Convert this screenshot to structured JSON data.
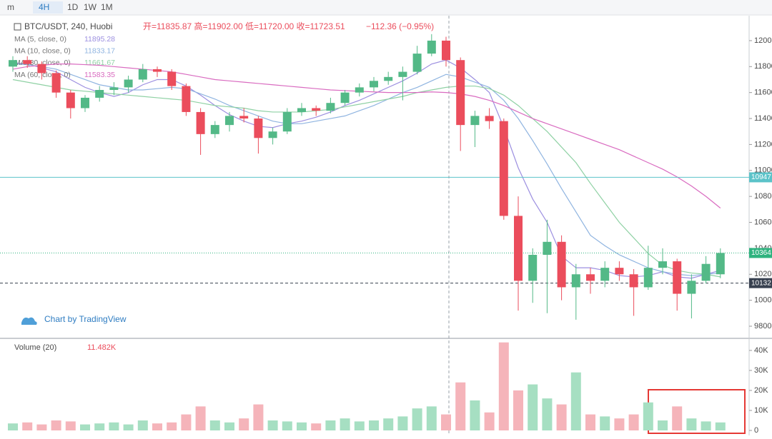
{
  "toolbar": {
    "buttons": [
      "m",
      "4H",
      "1D",
      "1W",
      "1M"
    ]
  },
  "chart_data": {
    "type": "candlestick",
    "title": "BTC/USDT, 240, Huobi",
    "ohlc_legend": "开=11835.87 高=11902.00 低=11720.00 收=11723.51",
    "change_legend": "−112.36 (−0.95%)",
    "watermark": "Chart by TradingView",
    "up_color": "#53b987",
    "down_color": "#eb4d5c",
    "ylim": [
      9712,
      12192
    ],
    "yticks": [
      9800,
      10000,
      10200,
      10400,
      10600,
      10800,
      11000,
      11200,
      11400,
      11600,
      11800,
      12000
    ],
    "open": [
      11800,
      11850,
      11820,
      11750,
      11600,
      11480,
      11560,
      11620,
      11640,
      11700,
      11780,
      11760,
      11650,
      11450,
      11280,
      11350,
      11420,
      11400,
      11250,
      11300,
      11450,
      11480,
      11460,
      11520,
      11600,
      11640,
      11690,
      11720,
      11760,
      11900,
      12000,
      11850,
      11350,
      11420,
      11380,
      10650,
      10150,
      10350,
      10450,
      10100,
      10200,
      10150,
      10250,
      10200,
      10100,
      10250,
      10300,
      10050,
      10150,
      10200
    ],
    "high": [
      11880,
      11880,
      11840,
      11770,
      11620,
      11580,
      11650,
      11680,
      11730,
      11820,
      11800,
      11780,
      11670,
      11480,
      11380,
      11450,
      11480,
      11420,
      11330,
      11480,
      11520,
      11500,
      11560,
      11620,
      11670,
      11720,
      11760,
      11800,
      11960,
      12050,
      12030,
      11870,
      11460,
      11480,
      11400,
      10800,
      10400,
      10620,
      10500,
      10280,
      10250,
      10300,
      10300,
      10240,
      10420,
      10400,
      10320,
      10200,
      10340,
      10400
    ],
    "low": [
      11760,
      11790,
      11700,
      11560,
      11400,
      11450,
      11530,
      11580,
      11600,
      11680,
      11720,
      11620,
      11420,
      11120,
      11250,
      11300,
      11370,
      11130,
      11200,
      11280,
      11420,
      11420,
      11440,
      11500,
      11570,
      11610,
      11660,
      11540,
      11740,
      11880,
      11800,
      11150,
      11180,
      11320,
      10620,
      9920,
      9980,
      9900,
      10000,
      9850,
      10050,
      10100,
      10150,
      9880,
      10080,
      10200,
      9920,
      9860,
      10130,
      10170
    ],
    "close": [
      11850,
      11820,
      11750,
      11600,
      11480,
      11560,
      11620,
      11640,
      11700,
      11780,
      11760,
      11650,
      11450,
      11280,
      11350,
      11420,
      11400,
      11250,
      11300,
      11450,
      11480,
      11460,
      11520,
      11600,
      11640,
      11690,
      11720,
      11760,
      11900,
      12000,
      11850,
      11350,
      11420,
      11380,
      10650,
      10150,
      10350,
      10450,
      10100,
      10200,
      10150,
      10250,
      10200,
      10100,
      10250,
      10300,
      10050,
      10150,
      10280,
      10364
    ],
    "moving_averages": [
      {
        "name": "MA (5, close, 0)",
        "value_label": "11895.28",
        "color": "#9c8fe0",
        "values": [
          11830,
          11820,
          11790,
          11760,
          11700,
          11640,
          11600,
          11570,
          11600,
          11660,
          11700,
          11700,
          11650,
          11580,
          11500,
          11430,
          11380,
          11340,
          11330,
          11360,
          11380,
          11410,
          11450,
          11500,
          11540,
          11590,
          11640,
          11690,
          11750,
          11820,
          11850,
          11790,
          11700,
          11600,
          11330,
          11020,
          10780,
          10600,
          10340,
          10250,
          10250,
          10230,
          10190,
          10180,
          10190,
          10220,
          10180,
          10170,
          10200,
          10230
        ]
      },
      {
        "name": "MA (10, close, 0)",
        "value_label": "11833.17",
        "color": "#8fb4e0",
        "values": [
          11820,
          11815,
          11800,
          11780,
          11740,
          11700,
          11660,
          11640,
          11620,
          11620,
          11630,
          11640,
          11630,
          11590,
          11550,
          11500,
          11460,
          11420,
          11380,
          11360,
          11360,
          11380,
          11400,
          11420,
          11460,
          11500,
          11550,
          11600,
          11640,
          11690,
          11740,
          11720,
          11680,
          11640,
          11540,
          11400,
          11230,
          11050,
          10860,
          10680,
          10500,
          10420,
          10350,
          10300,
          10250,
          10220,
          10200,
          10190,
          10200,
          10210
        ]
      },
      {
        "name": "MA (30, close, 0)",
        "value_label": "11661.67",
        "color": "#8fd1a4",
        "values": [
          11700,
          11680,
          11660,
          11640,
          11620,
          11610,
          11600,
          11590,
          11580,
          11570,
          11560,
          11550,
          11540,
          11520,
          11500,
          11490,
          11480,
          11460,
          11450,
          11450,
          11450,
          11460,
          11470,
          11490,
          11510,
          11530,
          11550,
          11570,
          11600,
          11620,
          11640,
          11650,
          11650,
          11630,
          11580,
          11500,
          11400,
          11300,
          11180,
          11060,
          10900,
          10750,
          10600,
          10480,
          10360,
          10270,
          10230,
          10210,
          10200,
          10180
        ]
      },
      {
        "name": "MA (60, close, 0)",
        "value_label": "11583.35",
        "color": "#d96bc0",
        "values": [
          11780,
          11800,
          11810,
          11820,
          11820,
          11815,
          11810,
          11800,
          11790,
          11780,
          11770,
          11760,
          11740,
          11720,
          11700,
          11690,
          11680,
          11670,
          11660,
          11650,
          11640,
          11630,
          11620,
          11615,
          11610,
          11605,
          11600,
          11600,
          11600,
          11605,
          11600,
          11590,
          11570,
          11540,
          11500,
          11450,
          11400,
          11360,
          11320,
          11280,
          11240,
          11200,
          11160,
          11110,
          11060,
          11010,
          10950,
          10880,
          10800,
          10710
        ]
      }
    ],
    "price_lines": [
      {
        "value": 10947,
        "color": "#5cc3c9",
        "style": "solid"
      },
      {
        "value": 10364,
        "color": "#2fb37f",
        "style": "dotted"
      },
      {
        "value": 10132,
        "color": "#37404f",
        "style": "dashed"
      }
    ],
    "volume": {
      "name": "Volume (20)",
      "value_label": "11.482K",
      "ylim": [
        -2500,
        44600
      ],
      "yticks": [
        0,
        {
          "value": 10000,
          "label": "10K"
        },
        {
          "value": 20000,
          "label": "20K"
        },
        {
          "value": 30000,
          "label": "30K"
        },
        {
          "value": 40000,
          "label": "40K"
        }
      ],
      "values": [
        3500,
        4000,
        3000,
        5000,
        4500,
        3000,
        3500,
        4000,
        3000,
        5000,
        3500,
        4000,
        8000,
        12000,
        5000,
        4000,
        6000,
        13000,
        5000,
        4500,
        4000,
        3500,
        5000,
        6000,
        4500,
        5000,
        6000,
        7000,
        11000,
        12000,
        8000,
        24000,
        15000,
        9000,
        44000,
        20000,
        23000,
        16000,
        13000,
        29000,
        8000,
        7000,
        6000,
        8000,
        14000,
        5000,
        12000,
        6000,
        4500,
        4000
      ]
    }
  }
}
